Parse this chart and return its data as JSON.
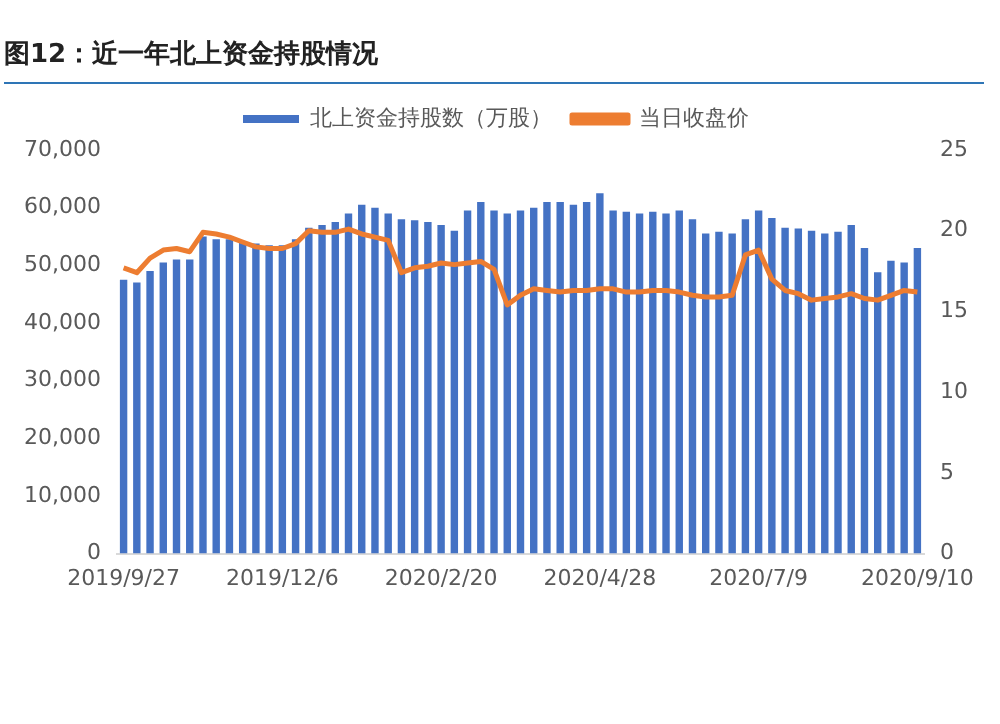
{
  "chart_data": {
    "type": "bar",
    "title": "图12：近一年北上资金持股情况",
    "categories": [
      "2019/9/27",
      null,
      null,
      null,
      null,
      null,
      null,
      null,
      null,
      null,
      null,
      null,
      "2019/12/6",
      null,
      null,
      null,
      null,
      null,
      null,
      null,
      null,
      null,
      null,
      null,
      "2020/2/20",
      null,
      null,
      null,
      null,
      null,
      null,
      null,
      null,
      null,
      null,
      null,
      "2020/4/28",
      null,
      null,
      null,
      null,
      null,
      null,
      null,
      null,
      null,
      null,
      null,
      "2020/7/9",
      null,
      null,
      null,
      null,
      null,
      null,
      null,
      null,
      null,
      null,
      null,
      "2020/9/10"
    ],
    "series": [
      {
        "name": "北上资金持股数（万股）",
        "color": "#4472c4",
        "values": [
          47500,
          47000,
          49000,
          50500,
          51000,
          51000,
          55000,
          54500,
          54500,
          54000,
          53800,
          53500,
          53500,
          54500,
          56500,
          57000,
          57500,
          59000,
          60500,
          60000,
          59000,
          58000,
          57800,
          57500,
          57000,
          56000,
          59500,
          61000,
          59500,
          59000,
          59500,
          60000,
          61000,
          61000,
          60500,
          61000,
          62500,
          59500,
          59300,
          59000,
          59300,
          59000,
          59500,
          58000,
          55500,
          55800,
          55500,
          58000,
          59500,
          58200,
          56500,
          56400,
          56000,
          55500,
          55800,
          57000,
          53000,
          48800,
          50800,
          50500,
          53000
        ]
      },
      {
        "name": "当日收盘价",
        "type": "line",
        "axis": "y2",
        "color": "#ed7d31",
        "values": [
          17.7,
          17.4,
          18.3,
          18.8,
          18.9,
          18.7,
          19.9,
          19.8,
          19.6,
          19.3,
          19.0,
          18.9,
          18.9,
          19.2,
          20.0,
          19.9,
          19.9,
          20.1,
          19.8,
          19.6,
          19.4,
          17.4,
          17.7,
          17.8,
          18.0,
          17.9,
          18.0,
          18.1,
          17.6,
          15.4,
          16.0,
          16.4,
          16.3,
          16.2,
          16.3,
          16.3,
          16.4,
          16.4,
          16.2,
          16.2,
          16.3,
          16.3,
          16.2,
          16.0,
          15.9,
          15.9,
          16.0,
          18.5,
          18.8,
          17.0,
          16.3,
          16.1,
          15.7,
          15.8,
          15.9,
          16.1,
          15.8,
          15.7,
          16.0,
          16.3,
          16.2
        ]
      }
    ],
    "ylim": [
      0,
      70000
    ],
    "yticks": [
      {
        "value": 0,
        "label": "0"
      },
      {
        "value": 10000,
        "label": "10,000"
      },
      {
        "value": 20000,
        "label": "20,000"
      },
      {
        "value": 30000,
        "label": "30,000"
      },
      {
        "value": 40000,
        "label": "40,000"
      },
      {
        "value": 50000,
        "label": "50,000"
      },
      {
        "value": 60000,
        "label": "60,000"
      },
      {
        "value": 70000,
        "label": "70,000"
      }
    ],
    "y2lim": [
      0,
      25
    ],
    "y2ticks": [
      0,
      5,
      10,
      15,
      20,
      25
    ],
    "legend": "top",
    "grid": false,
    "marker": "none",
    "line_style": "solid"
  }
}
